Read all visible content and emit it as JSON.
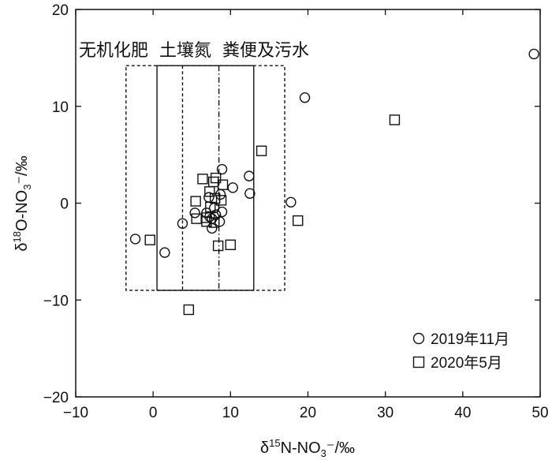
{
  "chart_data": {
    "type": "scatter",
    "xlim": [
      -10,
      50
    ],
    "ylim": [
      -20,
      20
    ],
    "x_ticks": [
      -10,
      0,
      10,
      20,
      30,
      40,
      50
    ],
    "y_ticks": [
      -20,
      -10,
      0,
      10,
      20
    ],
    "x_tick_labels": [
      "−10",
      "0",
      "10",
      "20",
      "30",
      "40",
      "50"
    ],
    "y_tick_labels": [
      "−20",
      "−10",
      "0",
      "10",
      "20"
    ],
    "xlabel": {
      "main": "δ",
      "sup": "15",
      "mid": "N-NO",
      "sub": "3",
      "tail": "⁻/‰"
    },
    "ylabel": {
      "main": "δ",
      "sup": "18",
      "mid": "O-NO",
      "sub": "3",
      "tail": "⁻/‰"
    },
    "grid": false,
    "legend_position": "bottom-right",
    "regions": [
      {
        "name": "无机化肥",
        "x": [
          -3.5,
          17
        ],
        "y": [
          -9,
          14.2
        ],
        "style": "dashed"
      },
      {
        "name": "土壤氮",
        "x": [
          0.5,
          13
        ],
        "y": [
          -9,
          14.2
        ],
        "style": "solid"
      },
      {
        "name": "粪便及污水",
        "x": [
          3.8,
          8.5
        ],
        "y": [
          -9,
          14.2
        ],
        "style": "dash-inner"
      }
    ],
    "region_title": "无机化肥  土壤氮  粪便及污水",
    "series": [
      {
        "name": "2019年11月",
        "marker": "circle",
        "points": [
          [
            49.2,
            15.4
          ],
          [
            19.6,
            10.9
          ],
          [
            17.8,
            0.1
          ],
          [
            12.4,
            2.8
          ],
          [
            12.5,
            1.0
          ],
          [
            10.3,
            1.6
          ],
          [
            8.9,
            3.5
          ],
          [
            8.7,
            0.9
          ],
          [
            8.9,
            -0.9
          ],
          [
            8.6,
            -1.9
          ],
          [
            8.1,
            -1.2
          ],
          [
            7.9,
            -0.5
          ],
          [
            7.6,
            -1.6
          ],
          [
            7.6,
            -2.6
          ],
          [
            7.3,
            -1.4
          ],
          [
            7.2,
            0.6
          ],
          [
            6.9,
            -1.0
          ],
          [
            5.4,
            -1.0
          ],
          [
            3.8,
            -2.1
          ],
          [
            1.5,
            -5.1
          ],
          [
            -2.3,
            -3.7
          ]
        ]
      },
      {
        "name": "2020年5月",
        "marker": "square",
        "points": [
          [
            31.2,
            8.6
          ],
          [
            14.0,
            5.4
          ],
          [
            18.7,
            -1.8
          ],
          [
            10.0,
            -4.3
          ],
          [
            8.4,
            -4.4
          ],
          [
            4.6,
            -11.0
          ],
          [
            -0.4,
            -3.8
          ],
          [
            5.5,
            0.2
          ],
          [
            5.6,
            -1.6
          ],
          [
            6.4,
            2.5
          ],
          [
            6.9,
            -1.5
          ],
          [
            7.3,
            1.2
          ],
          [
            7.8,
            2.2
          ],
          [
            8.1,
            2.6
          ],
          [
            9.0,
            1.9
          ],
          [
            8.8,
            0.3
          ],
          [
            8.0,
            0.5
          ],
          [
            7.4,
            -0.4
          ],
          [
            6.9,
            -1.9
          ],
          [
            7.9,
            -2.0
          ]
        ]
      }
    ]
  }
}
